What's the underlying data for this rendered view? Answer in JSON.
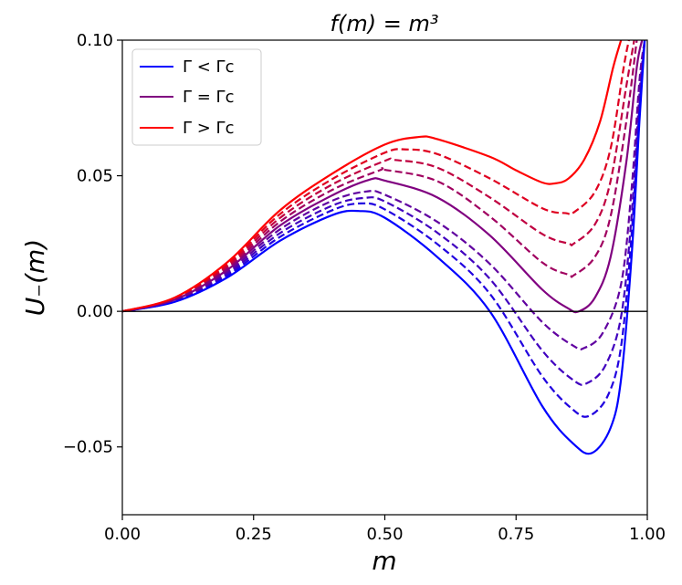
{
  "chart_data": {
    "type": "line",
    "title": "f(m) = m³",
    "xlabel": "m",
    "ylabel": "U₋(m)",
    "xlim": [
      0.0,
      1.0
    ],
    "ylim": [
      -0.075,
      0.1
    ],
    "xticks": [
      0.0,
      0.25,
      0.5,
      0.75,
      1.0
    ],
    "xtick_labels": [
      "0.00",
      "0.25",
      "0.50",
      "0.75",
      "1.00"
    ],
    "yticks": [
      -0.05,
      0.0,
      0.05,
      0.1
    ],
    "ytick_labels": [
      "−0.05",
      "0.00",
      "0.05",
      "0.10"
    ],
    "reference_line": {
      "y": 0.0,
      "color": "#000000"
    },
    "legend": {
      "position": "top-left",
      "entries": [
        {
          "label": "Γ < Γc",
          "color": "#0000ff"
        },
        {
          "label": "Γ = Γc",
          "color": "#800080"
        },
        {
          "label": "Γ > Γc",
          "color": "#ff0000"
        }
      ]
    },
    "series": [
      {
        "name": "Γ < Γc",
        "style": "solid",
        "color": "#0000ff",
        "points": [
          [
            0,
            0
          ],
          [
            0.1,
            0.0035
          ],
          [
            0.2,
            0.0125
          ],
          [
            0.3,
            0.026
          ],
          [
            0.4,
            0.0355
          ],
          [
            0.45,
            0.037
          ],
          [
            0.5,
            0.0345
          ],
          [
            0.6,
            0.02
          ],
          [
            0.7,
            0.0
          ],
          [
            0.8,
            -0.035
          ],
          [
            0.86,
            -0.049
          ],
          [
            0.895,
            -0.0522
          ],
          [
            0.93,
            -0.043
          ],
          [
            0.95,
            -0.025
          ],
          [
            0.97,
            0.02
          ],
          [
            0.985,
            0.07
          ],
          [
            0.995,
            0.1
          ]
        ]
      },
      {
        "name": "Γ < Γc (2)",
        "style": "dashed",
        "color": "#2000df",
        "points": [
          [
            0,
            0
          ],
          [
            0.1,
            0.0037
          ],
          [
            0.2,
            0.0132
          ],
          [
            0.3,
            0.0274
          ],
          [
            0.4,
            0.0373
          ],
          [
            0.455,
            0.0398
          ],
          [
            0.5,
            0.0376
          ],
          [
            0.6,
            0.0248
          ],
          [
            0.7,
            0.0065
          ],
          [
            0.8,
            -0.024
          ],
          [
            0.86,
            -0.0365
          ],
          [
            0.89,
            -0.0385
          ],
          [
            0.925,
            -0.031
          ],
          [
            0.95,
            -0.013
          ],
          [
            0.97,
            0.028
          ],
          [
            0.985,
            0.075
          ],
          [
            0.995,
            0.1
          ]
        ]
      },
      {
        "name": "Γ < Γc (3)",
        "style": "dashed",
        "color": "#4000bf",
        "points": [
          [
            0,
            0
          ],
          [
            0.1,
            0.0039
          ],
          [
            0.2,
            0.0139
          ],
          [
            0.3,
            0.0288
          ],
          [
            0.4,
            0.039
          ],
          [
            0.46,
            0.0418
          ],
          [
            0.5,
            0.0405
          ],
          [
            0.6,
            0.029
          ],
          [
            0.7,
            0.012
          ],
          [
            0.8,
            -0.0145
          ],
          [
            0.86,
            -0.0255
          ],
          [
            0.885,
            -0.0265
          ],
          [
            0.92,
            -0.02
          ],
          [
            0.95,
            -0.002
          ],
          [
            0.97,
            0.035
          ],
          [
            0.985,
            0.08
          ],
          [
            0.995,
            0.1
          ]
        ]
      },
      {
        "name": "Γ < Γc (4)",
        "style": "dashed",
        "color": "#6000a0",
        "points": [
          [
            0,
            0
          ],
          [
            0.1,
            0.0041
          ],
          [
            0.2,
            0.0146
          ],
          [
            0.3,
            0.0302
          ],
          [
            0.4,
            0.0408
          ],
          [
            0.465,
            0.0442
          ],
          [
            0.5,
            0.043
          ],
          [
            0.6,
            0.033
          ],
          [
            0.7,
            0.0175
          ],
          [
            0.8,
            -0.004
          ],
          [
            0.86,
            -0.0128
          ],
          [
            0.88,
            -0.0135
          ],
          [
            0.915,
            -0.008
          ],
          [
            0.95,
            0.01
          ],
          [
            0.97,
            0.045
          ],
          [
            0.985,
            0.085
          ],
          [
            0.995,
            0.1
          ]
        ]
      },
      {
        "name": "Γ = Γc",
        "style": "solid",
        "color": "#800080",
        "points": [
          [
            0,
            0
          ],
          [
            0.1,
            0.0043
          ],
          [
            0.2,
            0.0153
          ],
          [
            0.3,
            0.0316
          ],
          [
            0.4,
            0.0428
          ],
          [
            0.47,
            0.0485
          ],
          [
            0.5,
            0.0482
          ],
          [
            0.6,
            0.042
          ],
          [
            0.7,
            0.028
          ],
          [
            0.8,
            0.008
          ],
          [
            0.85,
            0.001
          ],
          [
            0.87,
            0.0
          ],
          [
            0.9,
            0.005
          ],
          [
            0.93,
            0.02
          ],
          [
            0.96,
            0.055
          ],
          [
            0.98,
            0.09
          ],
          [
            0.99,
            0.1
          ]
        ]
      },
      {
        "name": "Γ > Γc (2)",
        "style": "dashed",
        "color": "#a00060",
        "points": [
          [
            0,
            0
          ],
          [
            0.1,
            0.0045
          ],
          [
            0.2,
            0.016
          ],
          [
            0.3,
            0.033
          ],
          [
            0.4,
            0.0448
          ],
          [
            0.49,
            0.052
          ],
          [
            0.5,
            0.0522
          ],
          [
            0.6,
            0.048
          ],
          [
            0.7,
            0.035
          ],
          [
            0.8,
            0.018
          ],
          [
            0.85,
            0.0135
          ],
          [
            0.86,
            0.0133
          ],
          [
            0.9,
            0.02
          ],
          [
            0.93,
            0.035
          ],
          [
            0.96,
            0.07
          ],
          [
            0.98,
            0.1
          ]
        ]
      },
      {
        "name": "Γ > Γc (3)",
        "style": "dashed",
        "color": "#c00040",
        "points": [
          [
            0,
            0
          ],
          [
            0.1,
            0.0047
          ],
          [
            0.2,
            0.0167
          ],
          [
            0.3,
            0.0344
          ],
          [
            0.4,
            0.0468
          ],
          [
            0.5,
            0.0555
          ],
          [
            0.52,
            0.0558
          ],
          [
            0.6,
            0.053
          ],
          [
            0.7,
            0.042
          ],
          [
            0.8,
            0.0285
          ],
          [
            0.85,
            0.025
          ],
          [
            0.86,
            0.025
          ],
          [
            0.9,
            0.032
          ],
          [
            0.93,
            0.048
          ],
          [
            0.96,
            0.083
          ],
          [
            0.975,
            0.1
          ]
        ]
      },
      {
        "name": "Γ > Γc (4)",
        "style": "dashed",
        "color": "#df0020",
        "points": [
          [
            0,
            0
          ],
          [
            0.1,
            0.0049
          ],
          [
            0.2,
            0.0174
          ],
          [
            0.3,
            0.0358
          ],
          [
            0.4,
            0.0488
          ],
          [
            0.5,
            0.0585
          ],
          [
            0.54,
            0.0597
          ],
          [
            0.6,
            0.058
          ],
          [
            0.7,
            0.049
          ],
          [
            0.8,
            0.038
          ],
          [
            0.845,
            0.0362
          ],
          [
            0.86,
            0.0365
          ],
          [
            0.9,
            0.044
          ],
          [
            0.93,
            0.06
          ],
          [
            0.955,
            0.09
          ],
          [
            0.965,
            0.1
          ]
        ]
      },
      {
        "name": "Γ > Γc",
        "style": "solid",
        "color": "#ff0000",
        "points": [
          [
            0,
            0
          ],
          [
            0.1,
            0.0051
          ],
          [
            0.2,
            0.0181
          ],
          [
            0.3,
            0.0372
          ],
          [
            0.4,
            0.0508
          ],
          [
            0.5,
            0.0615
          ],
          [
            0.565,
            0.0643
          ],
          [
            0.6,
            0.0635
          ],
          [
            0.7,
            0.057
          ],
          [
            0.75,
            0.052
          ],
          [
            0.8,
            0.0475
          ],
          [
            0.825,
            0.0472
          ],
          [
            0.85,
            0.049
          ],
          [
            0.88,
            0.056
          ],
          [
            0.91,
            0.07
          ],
          [
            0.935,
            0.09
          ],
          [
            0.95,
            0.1
          ]
        ]
      }
    ]
  }
}
